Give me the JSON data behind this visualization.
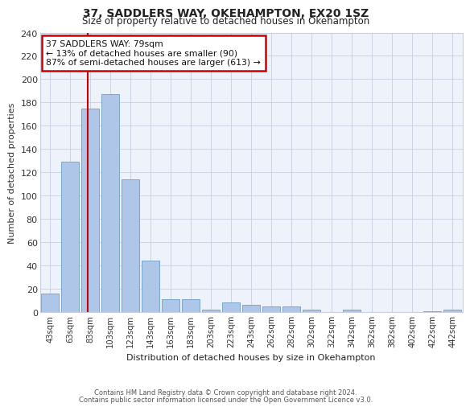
{
  "title": "37, SADDLERS WAY, OKEHAMPTON, EX20 1SZ",
  "subtitle": "Size of property relative to detached houses in Okehampton",
  "xlabel": "Distribution of detached houses by size in Okehampton",
  "ylabel": "Number of detached properties",
  "categories": [
    "43sqm",
    "63sqm",
    "83sqm",
    "103sqm",
    "123sqm",
    "143sqm",
    "163sqm",
    "183sqm",
    "203sqm",
    "223sqm",
    "243sqm",
    "262sqm",
    "282sqm",
    "302sqm",
    "322sqm",
    "342sqm",
    "362sqm",
    "382sqm",
    "402sqm",
    "422sqm",
    "442sqm"
  ],
  "values": [
    16,
    129,
    175,
    187,
    114,
    44,
    11,
    11,
    2,
    8,
    6,
    5,
    5,
    2,
    0,
    2,
    0,
    0,
    0,
    1,
    2
  ],
  "bar_color": "#aec6e8",
  "bar_edge_color": "#6a9fc8",
  "background_color": "#eef2fb",
  "grid_color": "#c8cfe0",
  "property_line_x": 1.88,
  "annotation_title": "37 SADDLERS WAY: 79sqm",
  "annotation_line1": "← 13% of detached houses are smaller (90)",
  "annotation_line2": "87% of semi-detached houses are larger (613) →",
  "annotation_box_color": "#cc0000",
  "ylim": [
    0,
    240
  ],
  "yticks": [
    0,
    20,
    40,
    60,
    80,
    100,
    120,
    140,
    160,
    180,
    200,
    220,
    240
  ],
  "footer_line1": "Contains HM Land Registry data © Crown copyright and database right 2024.",
  "footer_line2": "Contains public sector information licensed under the Open Government Licence v3.0."
}
